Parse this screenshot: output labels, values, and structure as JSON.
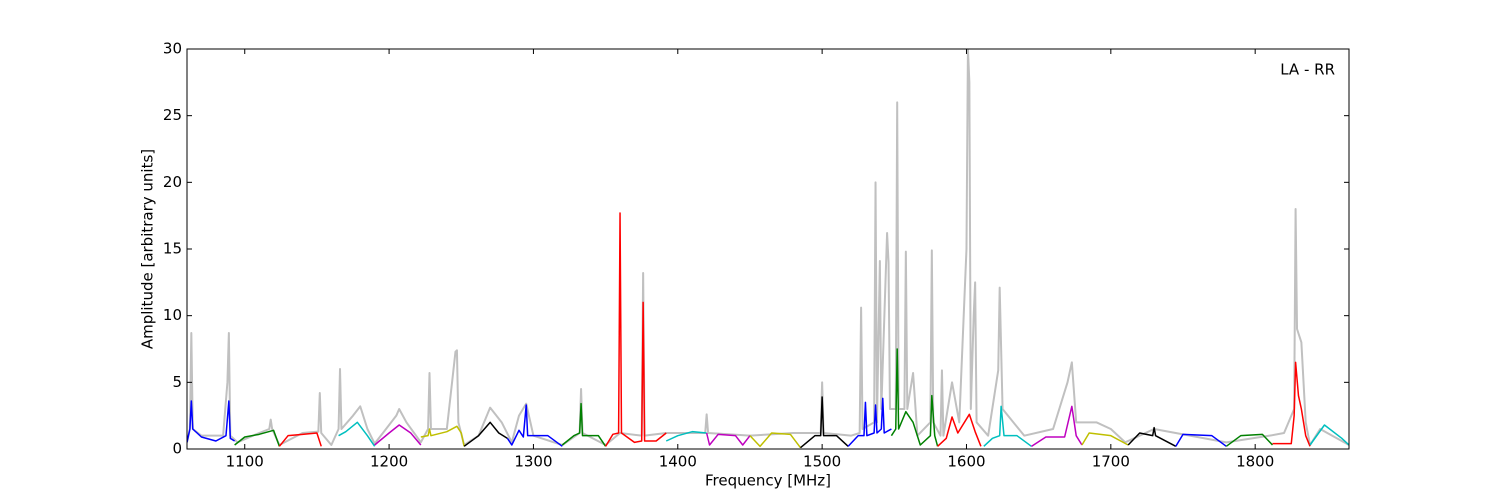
{
  "chart_data": {
    "type": "line",
    "xlabel": "Frequency [MHz]",
    "ylabel": "Amplitude [arbitrary units]",
    "annotation": "LA - RR",
    "xlim": [
      1060,
      1865
    ],
    "ylim": [
      0,
      30
    ],
    "xticks": [
      1100,
      1200,
      1300,
      1400,
      1500,
      1600,
      1700,
      1800
    ],
    "yticks": [
      0,
      5,
      10,
      15,
      20,
      25,
      30
    ],
    "series": [
      {
        "color": "#c0c0c0",
        "x": [
          1060,
          1062,
          1063,
          1064,
          1070,
          1085,
          1088,
          1089,
          1090,
          1095,
          1110,
          1117,
          1118,
          1119,
          1124,
          1140,
          1151,
          1152,
          1153,
          1160,
          1165,
          1166,
          1167,
          1175,
          1180,
          1185,
          1190,
          1205,
          1207,
          1212,
          1222,
          1227,
          1228,
          1229,
          1240,
          1246,
          1247,
          1248,
          1252,
          1262,
          1270,
          1278,
          1285,
          1290,
          1295,
          1300,
          1320,
          1332,
          1333,
          1334,
          1350,
          1360,
          1375,
          1376,
          1377,
          1392,
          1419,
          1420,
          1421,
          1450,
          1480,
          1499,
          1500,
          1501,
          1520,
          1526,
          1527,
          1528,
          1536,
          1537,
          1538,
          1540,
          1541,
          1545,
          1546,
          1547,
          1551,
          1552,
          1553,
          1557,
          1558,
          1559,
          1563,
          1566,
          1575,
          1576,
          1577,
          1582,
          1583,
          1584,
          1590,
          1595,
          1600,
          1601,
          1602,
          1603,
          1605,
          1606,
          1607,
          1615,
          1622,
          1623,
          1625,
          1640,
          1660,
          1670,
          1673,
          1676,
          1690,
          1700,
          1710,
          1730,
          1780,
          1810,
          1820,
          1827,
          1828,
          1829,
          1832,
          1835,
          1838,
          1845,
          1865
        ],
        "values": [
          0.5,
          1.5,
          8.7,
          1.5,
          1,
          1,
          5,
          8.7,
          1,
          0.5,
          1.2,
          1.5,
          2.2,
          1.5,
          0.3,
          1.2,
          1.3,
          4.2,
          1.2,
          0.3,
          1.5,
          6,
          1.5,
          2.5,
          3.2,
          1.5,
          0.4,
          2.5,
          3,
          2,
          0.5,
          1.5,
          5.7,
          1.5,
          1.5,
          7.3,
          7.4,
          2,
          0.3,
          1,
          3.1,
          2,
          0.5,
          2.5,
          3.4,
          1,
          0.3,
          1.2,
          4.5,
          1.2,
          0.3,
          1.2,
          1,
          13.2,
          1,
          1.2,
          1.2,
          2.6,
          1.2,
          1,
          1.2,
          1.2,
          5,
          1.2,
          1,
          1.2,
          10.6,
          1.5,
          2,
          20,
          2,
          14.1,
          3,
          16.2,
          14,
          3,
          3,
          26,
          3,
          3,
          14.8,
          3,
          5.7,
          1,
          2,
          14.9,
          2,
          1,
          5.9,
          1,
          5,
          2,
          15,
          30,
          27.5,
          3,
          10,
          12.5,
          2,
          1,
          5.9,
          12.1,
          3,
          1,
          1.5,
          5,
          6.5,
          2,
          2,
          1.5,
          0.5,
          1.5,
          0.5,
          1,
          1.2,
          3,
          18,
          9,
          8,
          2,
          0.3,
          1.5,
          0.3
        ]
      },
      {
        "color": "#0000ff",
        "x": [
          1060,
          1062,
          1063,
          1064,
          1070,
          1080,
          1087,
          1089,
          1090,
          1093
        ],
        "values": [
          0.5,
          1.5,
          3.6,
          1.5,
          0.9,
          0.6,
          1.0,
          3.6,
          0.8,
          0.6
        ]
      },
      {
        "color": "#008000",
        "x": [
          1093,
          1100,
          1110,
          1120,
          1124
        ],
        "values": [
          0.3,
          0.9,
          1.1,
          1.4,
          0.2
        ]
      },
      {
        "color": "#ff0000",
        "x": [
          1124,
          1130,
          1140,
          1150,
          1153
        ],
        "values": [
          0.2,
          1.0,
          1.1,
          1.2,
          0.2
        ]
      },
      {
        "color": "#00bfbf",
        "x": [
          1165,
          1170,
          1178,
          1185,
          1190
        ],
        "values": [
          1.0,
          1.3,
          2.0,
          1.0,
          0.2
        ]
      },
      {
        "color": "#bf00bf",
        "x": [
          1190,
          1200,
          1207,
          1215,
          1222
        ],
        "values": [
          0.3,
          1.2,
          1.8,
          1.2,
          0.3
        ]
      },
      {
        "color": "#bfbf00",
        "x": [
          1222,
          1227,
          1228,
          1229,
          1240,
          1247,
          1250,
          1252
        ],
        "values": [
          0.9,
          1.0,
          1.5,
          1.0,
          1.3,
          1.7,
          1.2,
          0.2
        ]
      },
      {
        "color": "#000000",
        "x": [
          1252,
          1262,
          1270,
          1276,
          1282
        ],
        "values": [
          0.2,
          1.0,
          2.0,
          1.2,
          0.8
        ]
      },
      {
        "color": "#0000ff",
        "x": [
          1282,
          1285,
          1290,
          1293,
          1295,
          1296,
          1310,
          1320
        ],
        "values": [
          0.8,
          0.3,
          1.4,
          0.9,
          3.3,
          1.0,
          1.0,
          0.2
        ]
      },
      {
        "color": "#008000",
        "x": [
          1320,
          1328,
          1332,
          1333,
          1334,
          1345,
          1350
        ],
        "values": [
          0.3,
          1.0,
          1.2,
          3.4,
          1.0,
          1.0,
          0.2
        ]
      },
      {
        "color": "#ff0000",
        "x": [
          1350,
          1355,
          1359,
          1360,
          1361,
          1370,
          1375,
          1376,
          1377,
          1385,
          1392
        ],
        "values": [
          0.2,
          1.1,
          1.2,
          17.7,
          1.2,
          0.5,
          0.6,
          11,
          0.6,
          0.6,
          1.2
        ]
      },
      {
        "color": "#00bfbf",
        "x": [
          1392,
          1400,
          1410,
          1420
        ],
        "values": [
          0.6,
          1.0,
          1.3,
          1.2
        ]
      },
      {
        "color": "#bf00bf",
        "x": [
          1420,
          1422,
          1428,
          1440,
          1445,
          1450
        ],
        "values": [
          1.2,
          0.3,
          1.1,
          1.0,
          0.3,
          1.0
        ]
      },
      {
        "color": "#bfbf00",
        "x": [
          1450,
          1457,
          1465,
          1478,
          1485
        ],
        "values": [
          1.0,
          0.2,
          1.2,
          1.1,
          0.1
        ]
      },
      {
        "color": "#000000",
        "x": [
          1485,
          1495,
          1499,
          1500,
          1501,
          1510,
          1518
        ],
        "values": [
          0.1,
          1.0,
          1.0,
          3.9,
          1.0,
          1.0,
          0.2
        ]
      },
      {
        "color": "#0000ff",
        "x": [
          1518,
          1525,
          1529,
          1530,
          1531,
          1536,
          1537,
          1538,
          1541,
          1542,
          1543,
          1548
        ],
        "values": [
          0.2,
          1.0,
          1.0,
          3.5,
          1.0,
          1.2,
          3.3,
          1.2,
          1.5,
          3.8,
          1.2,
          1.5
        ]
      },
      {
        "color": "#008000",
        "x": [
          1548,
          1551,
          1552,
          1553,
          1558,
          1563,
          1568,
          1575,
          1576,
          1578,
          1580
        ],
        "values": [
          1.0,
          1.5,
          7.5,
          1.5,
          2.8,
          2.0,
          0.3,
          1.0,
          4.0,
          1.0,
          0.2
        ]
      },
      {
        "color": "#ff0000",
        "x": [
          1580,
          1586,
          1590,
          1594,
          1602,
          1606,
          1610
        ],
        "values": [
          0.2,
          0.8,
          2.4,
          1.2,
          2.6,
          1.3,
          0.2
        ]
      },
      {
        "color": "#00bfbf",
        "x": [
          1612,
          1618,
          1623,
          1624,
          1626,
          1635,
          1645
        ],
        "values": [
          0.2,
          0.8,
          1.0,
          3.2,
          1.0,
          1.0,
          0.2
        ]
      },
      {
        "color": "#bf00bf",
        "x": [
          1645,
          1655,
          1668,
          1673,
          1676,
          1680
        ],
        "values": [
          0.2,
          0.9,
          0.9,
          3.2,
          1.0,
          0.3
        ]
      },
      {
        "color": "#bfbf00",
        "x": [
          1680,
          1685,
          1700,
          1712
        ],
        "values": [
          0.3,
          1.2,
          1.0,
          0.3
        ]
      },
      {
        "color": "#000000",
        "x": [
          1712,
          1720,
          1729,
          1730,
          1731,
          1745
        ],
        "values": [
          0.3,
          1.2,
          1.0,
          1.6,
          1.0,
          0.2
        ]
      },
      {
        "color": "#0000ff",
        "x": [
          1745,
          1750,
          1770,
          1780
        ],
        "values": [
          0.2,
          1.1,
          1.0,
          0.2
        ]
      },
      {
        "color": "#008000",
        "x": [
          1780,
          1790,
          1805,
          1812
        ],
        "values": [
          0.2,
          1.0,
          1.1,
          0.3
        ]
      },
      {
        "color": "#ff0000",
        "x": [
          1812,
          1825,
          1827,
          1828,
          1830,
          1832,
          1835,
          1838
        ],
        "values": [
          0.4,
          0.4,
          2.5,
          6.5,
          4.0,
          3.0,
          1.0,
          0.2
        ]
      },
      {
        "color": "#00bfbf",
        "x": [
          1838,
          1848,
          1860,
          1865
        ],
        "values": [
          0.3,
          1.8,
          0.8,
          0.3
        ]
      }
    ]
  }
}
